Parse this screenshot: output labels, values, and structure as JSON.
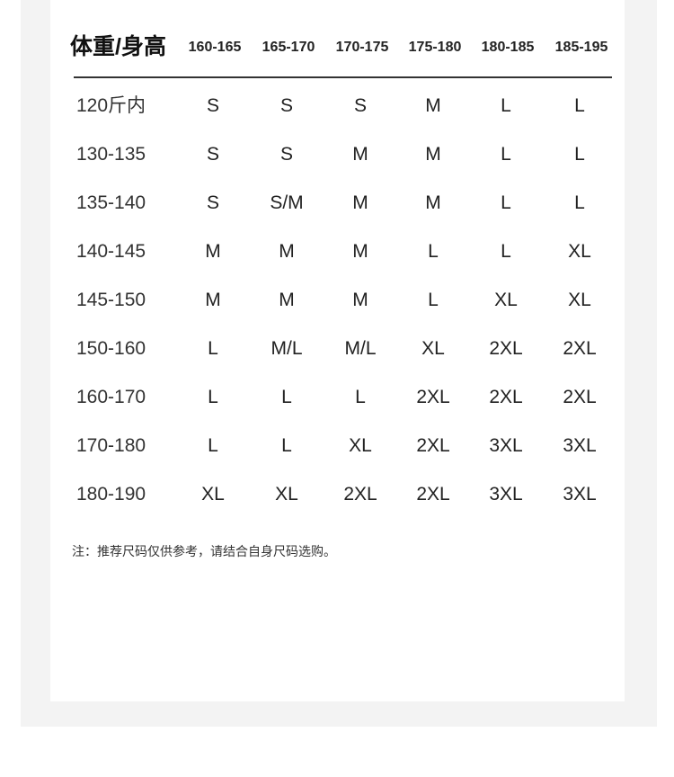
{
  "title": "体重/身高",
  "heights": [
    "160-165",
    "165-170",
    "170-175",
    "175-180",
    "180-185",
    "185-195"
  ],
  "rows": [
    {
      "weight": "120斤内",
      "sizes": [
        "S",
        "S",
        "S",
        "M",
        "L",
        "L"
      ]
    },
    {
      "weight": "130-135",
      "sizes": [
        "S",
        "S",
        "M",
        "M",
        "L",
        "L"
      ]
    },
    {
      "weight": "135-140",
      "sizes": [
        "S",
        "S/M",
        "M",
        "M",
        "L",
        "L"
      ]
    },
    {
      "weight": "140-145",
      "sizes": [
        "M",
        "M",
        "M",
        "L",
        "L",
        "XL"
      ]
    },
    {
      "weight": "145-150",
      "sizes": [
        "M",
        "M",
        "M",
        "L",
        "XL",
        "XL"
      ]
    },
    {
      "weight": "150-160",
      "sizes": [
        "L",
        "M/L",
        "M/L",
        "XL",
        "2XL",
        "2XL"
      ]
    },
    {
      "weight": "160-170",
      "sizes": [
        "L",
        "L",
        "L",
        "2XL",
        "2XL",
        "2XL"
      ]
    },
    {
      "weight": "170-180",
      "sizes": [
        "L",
        "L",
        "XL",
        "2XL",
        "3XL",
        "3XL"
      ]
    },
    {
      "weight": "180-190",
      "sizes": [
        "XL",
        "XL",
        "2XL",
        "2XL",
        "3XL",
        "3XL"
      ]
    }
  ],
  "note": "注：推荐尺码仅供参考，请结合自身尺码选购。"
}
